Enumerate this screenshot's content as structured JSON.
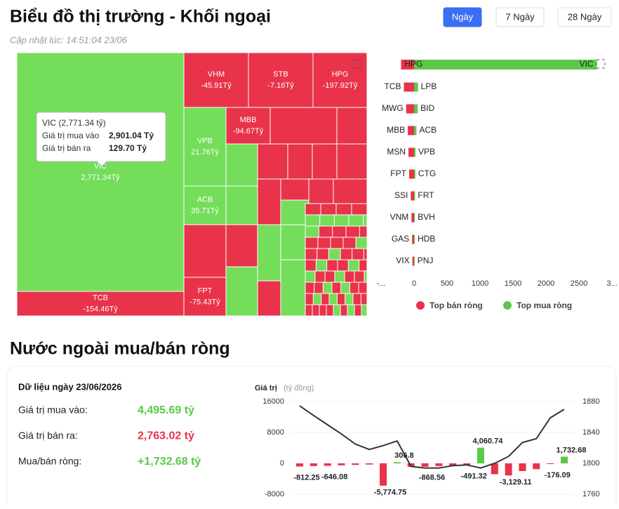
{
  "header": {
    "title": "Biểu đồ thị trường - Khối ngoại",
    "subtitle": "Cập nhật lúc: 14:51:04 23/06",
    "tabs": [
      "Ngày",
      "7 Ngày",
      "28 Ngày"
    ],
    "active_tab": 0
  },
  "treemap": {
    "buy_color": "#74dd5a",
    "sell_color": "#e8334a",
    "tiles": [
      {
        "name": "VIC",
        "value": 2771.34,
        "value_label": "2,771.34Tỷ"
      },
      {
        "name": "TCB",
        "value": -154.46,
        "value_label": "-154.46Tỷ"
      },
      {
        "name": "VHM",
        "value": -45.91,
        "value_label": "-45.91Tỷ"
      },
      {
        "name": "STB",
        "value": -7.16,
        "value_label": "-7.16Tỷ"
      },
      {
        "name": "HPG",
        "value": -197.92,
        "value_label": "-197.92Tỷ"
      },
      {
        "name": "VPB",
        "value": 21.76,
        "value_label": "21.76Tỷ"
      },
      {
        "name": "ACB",
        "value": 35.71,
        "value_label": "35.71Tỷ"
      },
      {
        "name": "FPT",
        "value": -75.43,
        "value_label": "-75.43Tỷ"
      },
      {
        "name": "MBB",
        "value": -94.67,
        "value_label": "-94.67Tỷ"
      }
    ],
    "tooltip": {
      "title": "VIC (2,771.34 tỷ)",
      "rows": [
        [
          "Giá trị mua vào",
          "2,901.04 Tỷ"
        ],
        [
          "Giá trị bán ra",
          "129.70 Tỷ"
        ]
      ]
    }
  },
  "top_chart": {
    "xlim": [
      -500,
      3000
    ],
    "xticks": [
      {
        "value": -500,
        "label": "-..."
      },
      0,
      500,
      1000,
      1500,
      2000,
      2500,
      {
        "value": 3000,
        "label": "3..."
      }
    ],
    "legend": [
      {
        "name": "Top bán ròng",
        "color": "#e8334a"
      },
      {
        "name": "Top mua ròng",
        "color": "#5cc84a"
      }
    ],
    "rows": [
      {
        "sell": "HPG",
        "sell_value": -197.92,
        "buy": "VIC",
        "buy_value": 2771.34
      },
      {
        "sell": "TCB",
        "sell_value": -154.46,
        "buy": "LPB",
        "buy_value": 60
      },
      {
        "sell": "MWG",
        "sell_value": -120,
        "buy": "BID",
        "buy_value": 55
      },
      {
        "sell": "MBB",
        "sell_value": -94.67,
        "buy": "ACB",
        "buy_value": 35.71
      },
      {
        "sell": "MSN",
        "sell_value": -85,
        "buy": "VPB",
        "buy_value": 21.76
      },
      {
        "sell": "FPT",
        "sell_value": -75.43,
        "buy": "CTG",
        "buy_value": 20
      },
      {
        "sell": "SSI",
        "sell_value": -50,
        "buy": "FRT",
        "buy_value": 15
      },
      {
        "sell": "VNM",
        "sell_value": -40,
        "buy": "BVH",
        "buy_value": 12
      },
      {
        "sell": "GAS",
        "sell_value": -30,
        "buy": "HDB",
        "buy_value": 10
      },
      {
        "sell": "VIX",
        "sell_value": -25,
        "buy": "PNJ",
        "buy_value": 8
      }
    ]
  },
  "summary": {
    "section_title": "Nước ngoài mua/bán ròng",
    "title": "Dữ liệu ngày 23/06/2026",
    "rows": [
      {
        "label": "Giá trị mua vào:",
        "value": "4,495.69 tỷ",
        "color": "#5cc84a"
      },
      {
        "label": "Giá trị bán ra:",
        "value": "2,763.02 tỷ",
        "color": "#e8334a"
      },
      {
        "label": "Mua/bán ròng:",
        "value": "+1,732.68 tỷ",
        "color": "#5cc84a"
      }
    ]
  },
  "combo_chart": {
    "type": "bar-line",
    "y_title": "Giá trị",
    "y_unit": "(tỷ đồng)",
    "ylim": [
      -8000,
      16000
    ],
    "yticks": [
      16000,
      8000,
      0,
      -8000
    ],
    "y2lim": [
      1760,
      1880
    ],
    "y2ticks": [
      1880,
      1840,
      1800,
      1760
    ],
    "grid": true,
    "positive_color": "#5cc84a",
    "negative_color": "#e8334a",
    "bars": {
      "values": [
        -812.25,
        -700,
        -646.08,
        -500,
        -400,
        -300,
        -5774.75,
        306.8,
        -900,
        -868.56,
        -700,
        -600,
        -491.32,
        4060.74,
        -2800,
        -3129.11,
        -2000,
        -1500,
        -176.09,
        1732.68
      ],
      "value_labels": [
        "-812.25",
        null,
        "-646.08",
        null,
        null,
        null,
        "-5,774.75",
        "306.8",
        null,
        "-868.56",
        null,
        null,
        "-491.32",
        "4,060.74",
        null,
        "-3,129.11",
        null,
        null,
        "-176.09",
        "1,732.68"
      ]
    },
    "line": {
      "axis": "y2",
      "color": "#333333",
      "values": [
        1874.5,
        1862,
        1850,
        1838,
        1825,
        1818,
        1823,
        1829,
        1796,
        1794,
        1794,
        1797,
        1798,
        1794,
        1800,
        1809,
        1827,
        1832,
        1859,
        1870
      ]
    }
  }
}
